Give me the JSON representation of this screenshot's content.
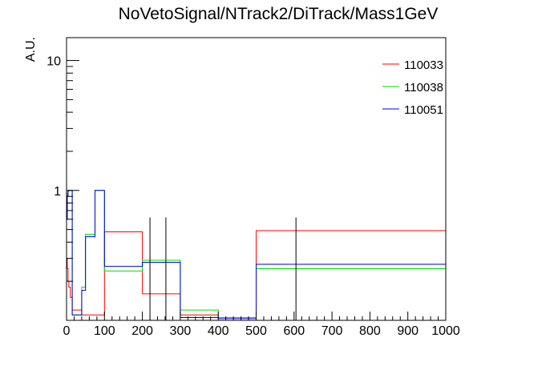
{
  "chart_data": {
    "type": "histogram-step",
    "title": "NoVetoSignal/NTrack2/DiTrack/Mass1GeV",
    "ylabel": "A.U.",
    "xlabel": "",
    "xlim": [
      0,
      1000
    ],
    "ylim": [
      0.1,
      15
    ],
    "yscale": "log",
    "grid": false,
    "legend_position": "top-right",
    "x_ticks": [
      0,
      100,
      200,
      300,
      400,
      500,
      600,
      700,
      800,
      900,
      1000
    ],
    "x_tick_labels": [
      "0",
      "100",
      "200",
      "300",
      "400",
      "500",
      "600",
      "700",
      "800",
      "900",
      "1000"
    ],
    "y_tick_labels": [
      {
        "value": 1,
        "label": "1"
      },
      {
        "value": 10,
        "label": "10"
      }
    ],
    "series": [
      {
        "name": "110033",
        "color": "#ff0000",
        "edges": [
          0,
          2,
          4,
          6,
          10,
          15,
          40,
          50,
          75,
          100,
          200,
          300,
          400,
          500,
          1000
        ],
        "values": [
          0.3,
          0.25,
          0.2,
          0.18,
          0.15,
          0.12,
          0.11,
          0.11,
          0.11,
          0.48,
          0.16,
          0.11,
          0.105,
          0.49
        ]
      },
      {
        "name": "110038",
        "color": "#00dd00",
        "edges": [
          0,
          2,
          4,
          6,
          10,
          15,
          40,
          50,
          75,
          100,
          200,
          300,
          400,
          500,
          1000
        ],
        "values": [
          0.9,
          0.95,
          0.98,
          1.0,
          1.0,
          0.11,
          0.18,
          0.46,
          1.0,
          0.24,
          0.29,
          0.12,
          0.105,
          0.25
        ]
      },
      {
        "name": "110051",
        "color": "#0000dd",
        "edges": [
          0,
          2,
          4,
          6,
          10,
          15,
          40,
          50,
          75,
          100,
          200,
          300,
          400,
          500,
          1000
        ],
        "values": [
          0.6,
          0.9,
          1.0,
          1.0,
          1.0,
          0.11,
          0.17,
          0.44,
          1.0,
          0.26,
          0.28,
          0.105,
          0.103,
          0.27
        ]
      }
    ],
    "error_bars": [
      {
        "x": 220,
        "low": 0.1,
        "high": 0.62
      },
      {
        "x": 262,
        "low": 0.1,
        "high": 0.62
      },
      {
        "x": 605,
        "low": 0.1,
        "high": 0.62
      }
    ]
  }
}
